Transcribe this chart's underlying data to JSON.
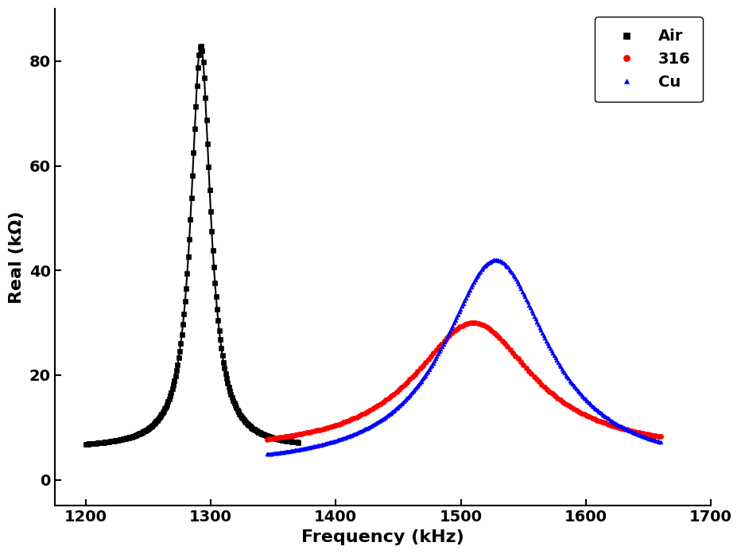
{
  "title": "",
  "xlabel": "Frequency (kHz)",
  "ylabel": "Real (kΩ)",
  "xlim": [
    1175,
    1700
  ],
  "ylim": [
    -5,
    90
  ],
  "xticks": [
    1200,
    1300,
    1400,
    1500,
    1600,
    1700
  ],
  "yticks": [
    0,
    20,
    40,
    60,
    80
  ],
  "series": [
    {
      "label": "Air",
      "color": "#000000",
      "marker": "s",
      "markersize": 4.5,
      "linewidth": 0,
      "f0": 1292,
      "peak": 83,
      "Q": 68,
      "baseline": 6,
      "fstart": 1200,
      "fend": 1370,
      "n_markers": 200
    },
    {
      "label": "316",
      "color": "#ff0000",
      "marker": "o",
      "markersize": 4.5,
      "linewidth": 0,
      "f0": 1510,
      "peak": 30,
      "Q": 13,
      "baseline": 5,
      "fstart": 1345,
      "fend": 1660,
      "n_markers": 150
    },
    {
      "label": "Cu",
      "color": "#0000ff",
      "marker": "^",
      "markersize": 3.5,
      "linewidth": 0,
      "f0": 1528,
      "peak": 42,
      "Q": 15,
      "baseline": 2,
      "fstart": 1345,
      "fend": 1660,
      "n_markers": 300
    }
  ],
  "legend_loc": "upper right",
  "legend_fontsize": 14,
  "axis_label_fontsize": 16,
  "tick_fontsize": 14,
  "background_color": "#ffffff",
  "figure_bg": "#ffffff"
}
